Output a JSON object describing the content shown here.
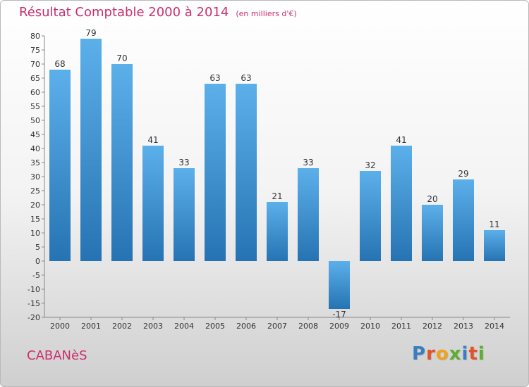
{
  "header": {
    "title": "Résultat Comptable 2000 à 2014",
    "subtitle": "(en milliers d'€)"
  },
  "footer": {
    "commune": "CABANèS",
    "logo": "Proxiti"
  },
  "colors": {
    "title": "#cc2e6e",
    "bar_light": "#5cb0ea",
    "bar_dark": "#2673b3",
    "logo_letters": [
      "#3a7ec2",
      "#e0532b",
      "#f0a21b",
      "#5cae2e",
      "#3a7ec2",
      "#e0532b",
      "#5cae2e"
    ]
  },
  "chart_data": {
    "type": "bar",
    "categories": [
      "2000",
      "2001",
      "2002",
      "2003",
      "2004",
      "2005",
      "2006",
      "2007",
      "2008",
      "2009",
      "2010",
      "2011",
      "2012",
      "2013",
      "2014"
    ],
    "values": [
      68,
      79,
      70,
      41,
      33,
      63,
      63,
      21,
      33,
      -17,
      32,
      41,
      20,
      29,
      11
    ],
    "ylim": [
      -20,
      80
    ],
    "yticks": [
      80,
      75,
      70,
      65,
      60,
      55,
      50,
      45,
      40,
      35,
      30,
      25,
      20,
      15,
      10,
      5,
      0,
      -5,
      -10,
      -15,
      -20
    ],
    "grid": false,
    "legend": "none"
  }
}
